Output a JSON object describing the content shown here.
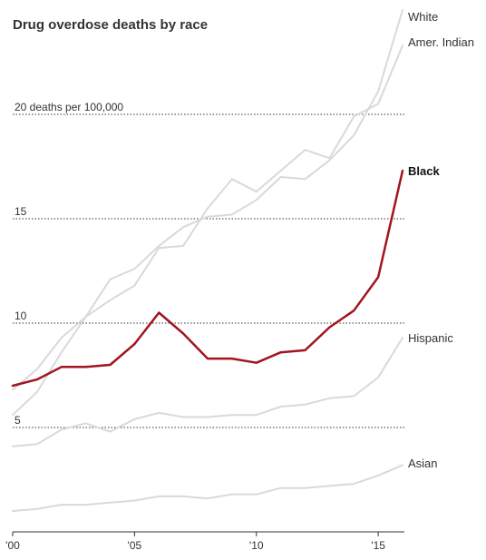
{
  "chart_data": {
    "type": "line",
    "title": "Drug overdose deaths by race",
    "unit_label": "20 deaths per 100,000",
    "xlabel": "",
    "ylabel": "",
    "x": [
      2000,
      2001,
      2002,
      2003,
      2004,
      2005,
      2006,
      2007,
      2008,
      2009,
      2010,
      2011,
      2012,
      2013,
      2014,
      2015,
      2016
    ],
    "x_tick_values": [
      2000,
      2005,
      2010,
      2015
    ],
    "x_tick_labels": [
      "'00",
      "'05",
      "'10",
      "'15"
    ],
    "y_gridlines": [
      {
        "value": 5,
        "label": "5"
      },
      {
        "value": 10,
        "label": "10"
      },
      {
        "value": 15,
        "label": "15"
      },
      {
        "value": 20,
        "label": "20 deaths per 100,000"
      }
    ],
    "ylim": [
      0,
      25
    ],
    "xlim": [
      2000,
      2016
    ],
    "series": [
      {
        "name": "White",
        "color": "#d9d9d9",
        "highlight": false,
        "values": [
          6.8,
          7.8,
          9.3,
          10.3,
          12.1,
          12.6,
          13.7,
          14.6,
          15.1,
          15.2,
          15.9,
          17.0,
          16.9,
          17.8,
          19.0,
          21.1,
          25.0
        ]
      },
      {
        "name": "Amer. Indian",
        "color": "#d9d9d9",
        "highlight": false,
        "values": [
          5.6,
          6.7,
          8.6,
          10.3,
          11.1,
          11.8,
          13.6,
          13.7,
          15.5,
          16.9,
          16.3,
          17.3,
          18.3,
          17.9,
          19.9,
          20.5,
          23.3
        ]
      },
      {
        "name": "Black",
        "color": "#a0151f",
        "highlight": true,
        "values": [
          7.0,
          7.3,
          7.9,
          7.9,
          8.0,
          9.0,
          10.5,
          9.5,
          8.3,
          8.3,
          8.1,
          8.6,
          8.7,
          9.8,
          10.6,
          12.2,
          17.3
        ]
      },
      {
        "name": "Hispanic",
        "color": "#d9d9d9",
        "highlight": false,
        "values": [
          4.1,
          4.2,
          4.9,
          5.2,
          4.8,
          5.4,
          5.7,
          5.5,
          5.5,
          5.6,
          5.6,
          6.0,
          6.1,
          6.4,
          6.5,
          7.4,
          9.3
        ]
      },
      {
        "name": "Asian",
        "color": "#d9d9d9",
        "highlight": false,
        "values": [
          1.0,
          1.1,
          1.3,
          1.3,
          1.4,
          1.5,
          1.7,
          1.7,
          1.6,
          1.8,
          1.8,
          2.1,
          2.1,
          2.2,
          2.3,
          2.7,
          3.2
        ]
      }
    ],
    "grid": "dotted horizontal",
    "legend": "direct labels at line ends"
  }
}
